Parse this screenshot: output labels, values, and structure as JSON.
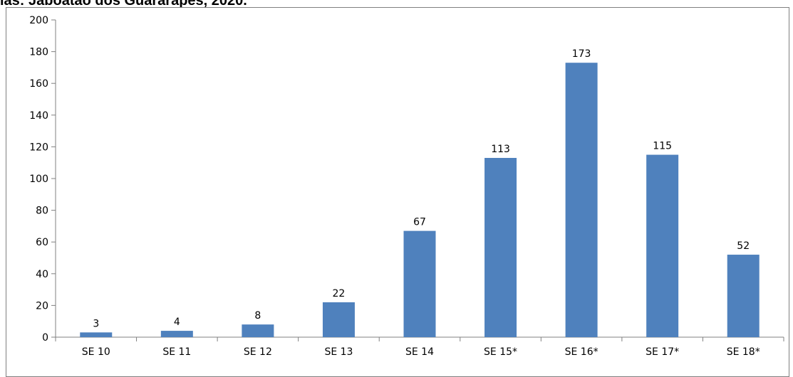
{
  "chart_data": {
    "type": "bar",
    "title": "ias: Jaboatão dos Guararapes, 2020.",
    "categories": [
      "SE 10",
      "SE 11",
      "SE 12",
      "SE 13",
      "SE 14",
      "SE 15*",
      "SE 16*",
      "SE 17*",
      "SE 18*"
    ],
    "values": [
      3,
      4,
      8,
      22,
      67,
      113,
      173,
      115,
      52
    ],
    "data_labels": [
      "3",
      "4",
      "8",
      "22",
      "67",
      "113",
      "173",
      "115",
      "52"
    ],
    "y_ticks": [
      "0",
      "20",
      "40",
      "60",
      "80",
      "100",
      "120",
      "140",
      "160",
      "180",
      "200"
    ],
    "ylim": [
      0,
      200
    ],
    "grid": false,
    "legend": "none",
    "bar_color": "#4F81BD"
  }
}
